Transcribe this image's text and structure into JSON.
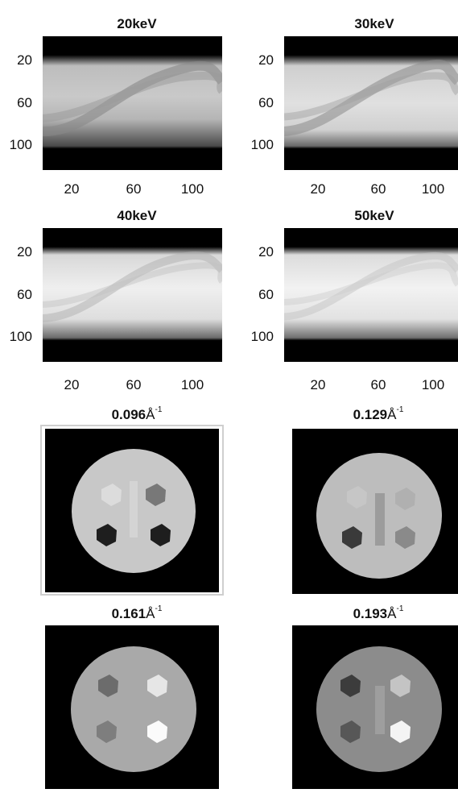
{
  "sinograms": [
    {
      "title": "20keV",
      "bright": 0.7,
      "band": 0.55
    },
    {
      "title": "30keV",
      "bright": 0.82,
      "band": 0.62
    },
    {
      "title": "40keV",
      "bright": 0.88,
      "band": 0.72
    },
    {
      "title": "50keV",
      "bright": 0.9,
      "band": 0.8
    }
  ],
  "sino_yticks": [
    "20",
    "60",
    "100"
  ],
  "sino_xticks": [
    "20",
    "60",
    "100"
  ],
  "reconstructions": [
    {
      "value": "0.096",
      "unit": "Å",
      "exp": "-1"
    },
    {
      "value": "0.129",
      "unit": "Å",
      "exp": "-1"
    },
    {
      "value": "0.161",
      "unit": "Å",
      "exp": "-1"
    },
    {
      "value": "0.193",
      "unit": "Å",
      "exp": "-1"
    }
  ],
  "colors": {
    "background": "#ffffff",
    "image_bg": "#000000"
  }
}
